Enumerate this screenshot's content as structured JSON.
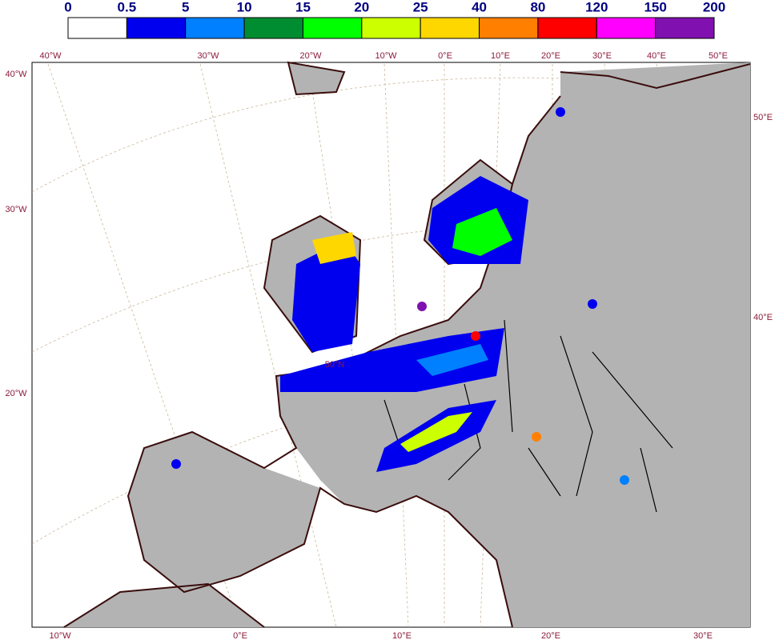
{
  "legend": {
    "labels": [
      "0",
      "0.5",
      "5",
      "10",
      "15",
      "20",
      "25",
      "40",
      "80",
      "120",
      "150",
      "200"
    ],
    "colors": [
      "#ffffff",
      "#0000ee",
      "#0080ff",
      "#008c30",
      "#00ff00",
      "#ccff00",
      "#ffd700",
      "#ff8000",
      "#ff0000",
      "#ff00ff",
      "#8010b0"
    ]
  },
  "graticule": {
    "top": [
      "40°W",
      "30°W",
      "20°W",
      "10°W",
      "0°E",
      "10°E",
      "20°E",
      "30°E",
      "40°E",
      "50°E"
    ],
    "left": [
      "40°W",
      "30°W",
      "20°W"
    ],
    "right": [
      "50°E",
      "40°E"
    ],
    "bottom": [
      "10°W",
      "0°E",
      "10°E",
      "20°E",
      "30°E"
    ],
    "inner": [
      "50°N"
    ]
  }
}
